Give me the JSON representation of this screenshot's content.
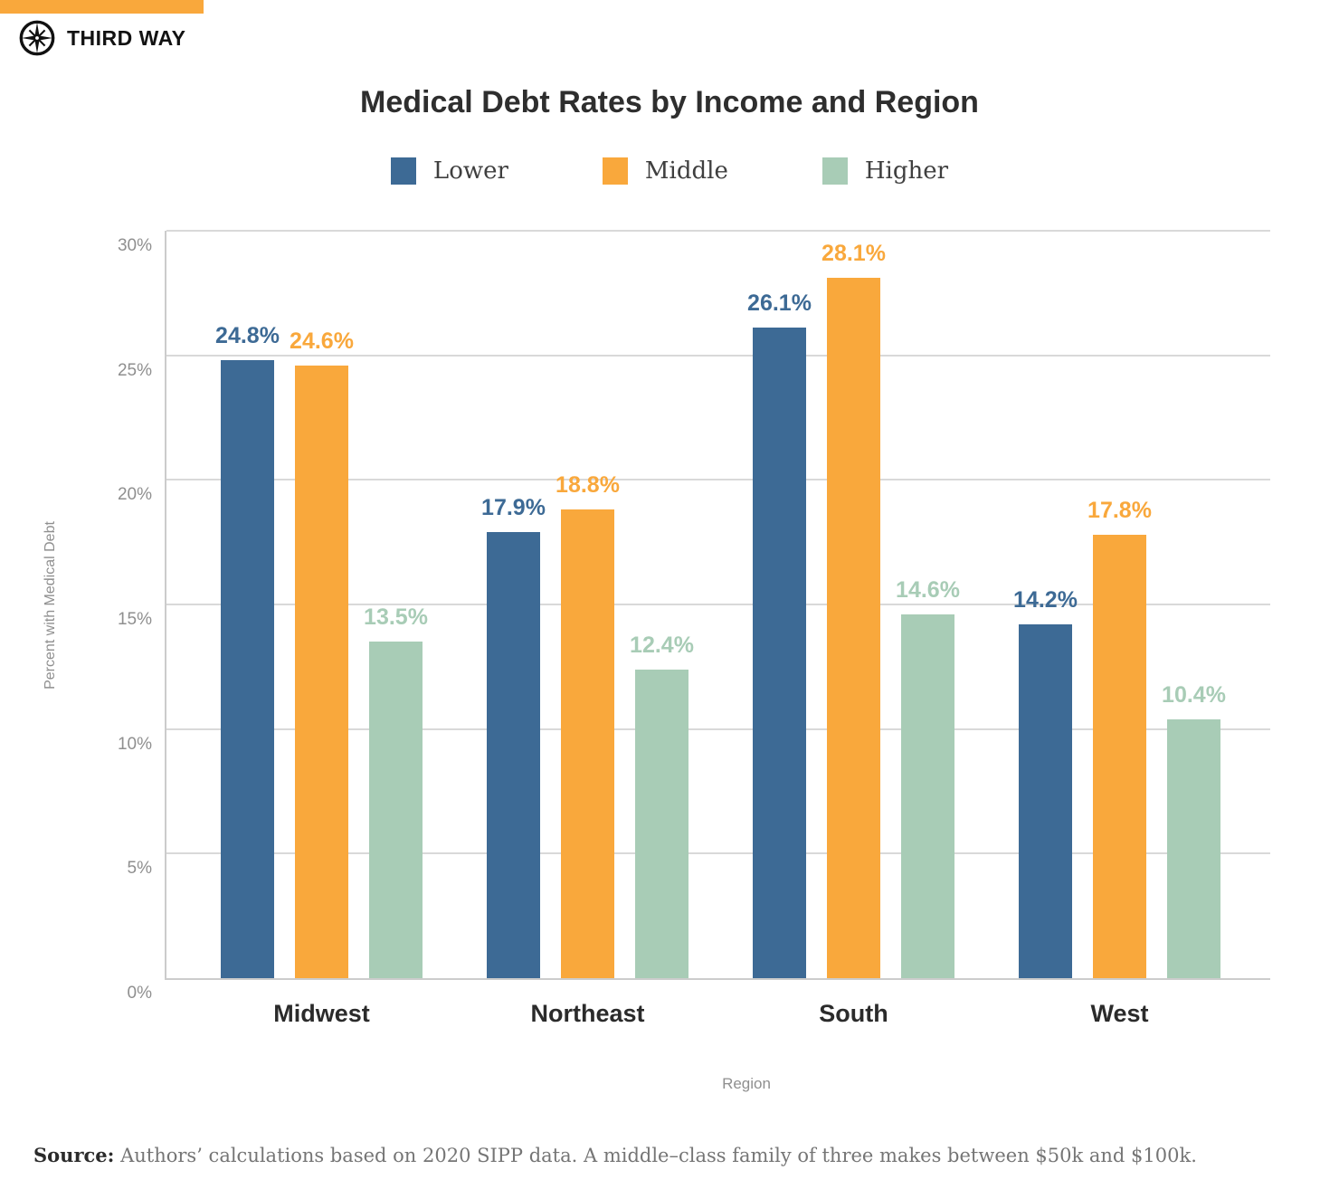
{
  "brand": {
    "name": "THIRD WAY",
    "accent_color": "#F9A83C"
  },
  "chart_data": {
    "type": "bar",
    "title": "Medical Debt Rates by Income and Region",
    "categories": [
      "Midwest",
      "Northeast",
      "South",
      "West"
    ],
    "series": [
      {
        "name": "Lower",
        "color": "#3D6A95",
        "values": [
          24.8,
          17.9,
          26.1,
          14.2
        ]
      },
      {
        "name": "Middle",
        "color": "#F9A83C",
        "values": [
          24.6,
          18.8,
          28.1,
          17.8
        ]
      },
      {
        "name": "Higher",
        "color": "#A8CCB6",
        "values": [
          13.5,
          12.4,
          14.6,
          10.4
        ]
      }
    ],
    "xlabel": "Region",
    "ylabel": "Percent with Medical Debt",
    "ylim": [
      0,
      30
    ],
    "yticks": [
      0,
      5,
      10,
      15,
      20,
      25,
      30
    ],
    "ytick_suffix": "%",
    "value_label_suffix": "%",
    "grid": true,
    "legend_position": "top"
  },
  "source": {
    "label": "Source:",
    "text": "Authors’ calculations based on 2020 SIPP data. A middle–class family of three makes between $50k and $100k."
  }
}
